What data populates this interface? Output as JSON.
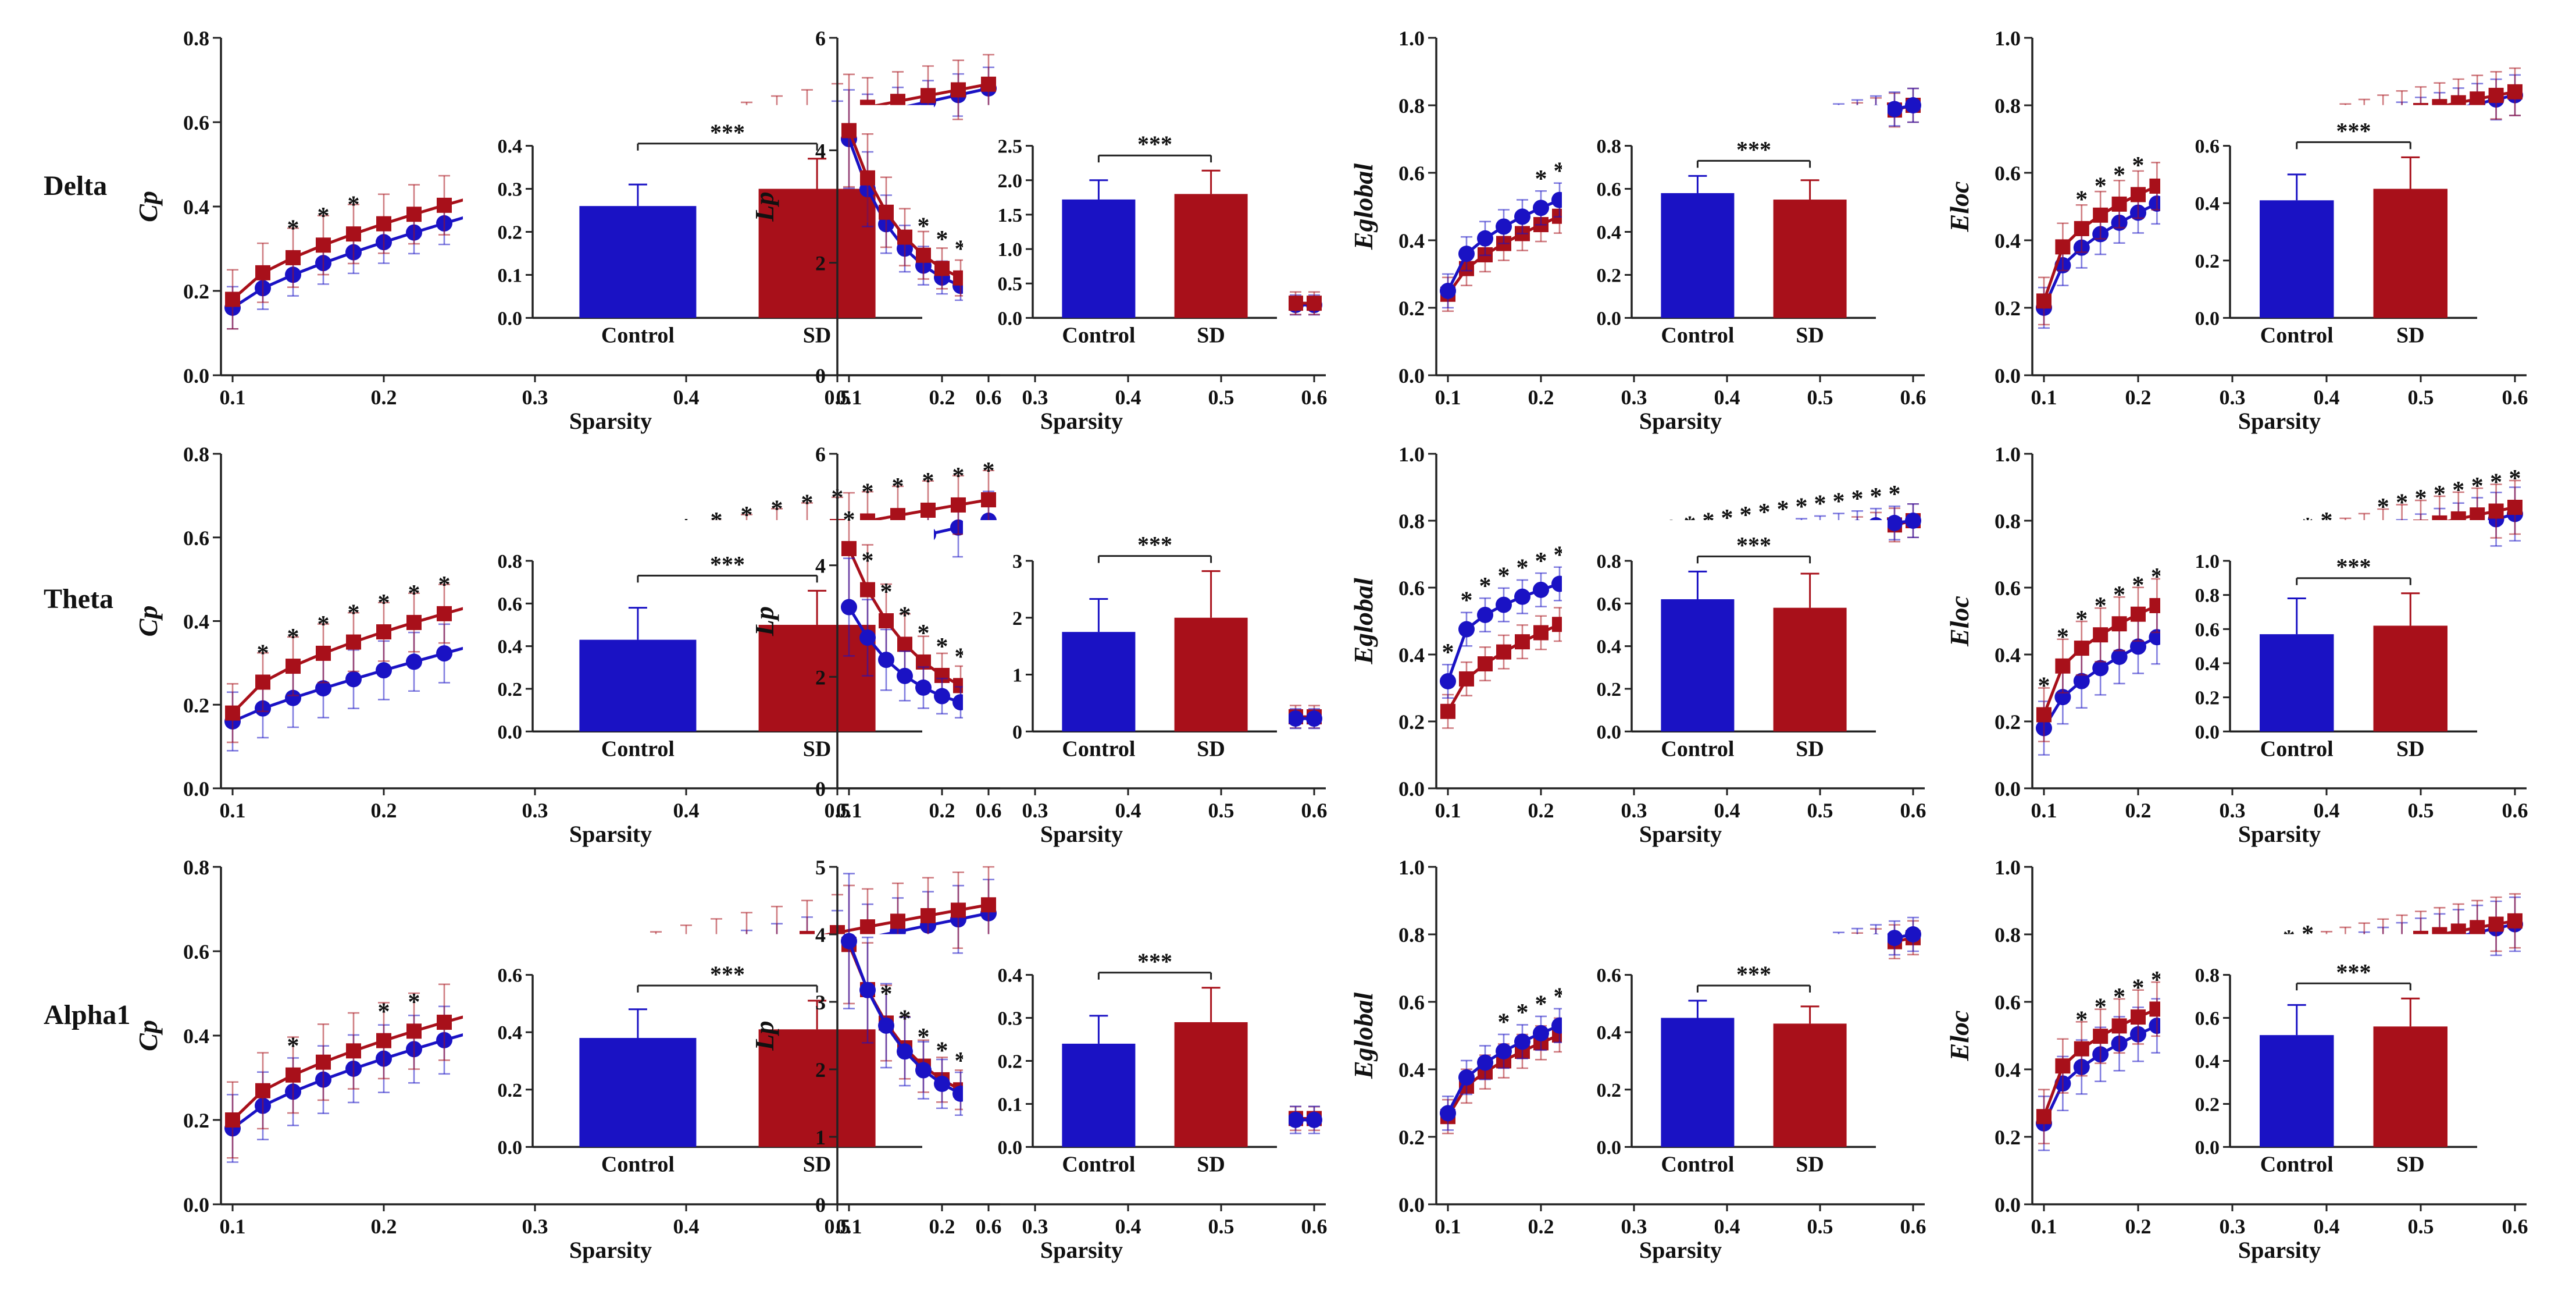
{
  "colors": {
    "control": "#1a12c4",
    "sd": "#a8101a",
    "axis": "#222222"
  },
  "rows": [
    {
      "label": "Delta"
    },
    {
      "label": "Theta"
    },
    {
      "label": "Alpha1"
    }
  ],
  "chart_data": [
    {
      "type": "line",
      "row": 0,
      "col": 0,
      "ylabel": "Cp",
      "xlabel": "Sparsity",
      "xlim": [
        0.1,
        0.6
      ],
      "ylim": [
        0,
        0.8
      ],
      "xticks": [
        "0.1",
        "0.2",
        "0.3",
        "0.4",
        "0.5",
        "0.6"
      ],
      "yticks": [
        "0.0",
        "0.2",
        "0.4",
        "0.6",
        "0.8"
      ],
      "series": [
        {
          "group": "control",
          "start": 0.16,
          "end": 0.68,
          "curve": 0.75,
          "err": 0.05
        },
        {
          "group": "sd",
          "start": 0.18,
          "end": 0.69,
          "curve": 0.65,
          "err": 0.07
        }
      ],
      "stars_x": [
        0.14,
        0.16,
        0.18
      ],
      "inset": {
        "categories": [
          "Control",
          "SD"
        ],
        "values": [
          0.26,
          0.3
        ],
        "errors": [
          0.05,
          0.07
        ],
        "ylim": [
          0,
          0.4
        ],
        "yticks": [
          "0.0",
          "0.1",
          "0.2",
          "0.3",
          "0.4"
        ],
        "sig": "***"
      }
    },
    {
      "type": "line",
      "row": 0,
      "col": 1,
      "ylabel": "Lp",
      "xlabel": "Sparsity",
      "xlim": [
        0.1,
        0.6
      ],
      "ylim": [
        0,
        6
      ],
      "xticks": [
        "0.1",
        "0.2",
        "0.3",
        "0.4",
        "0.5",
        "0.6"
      ],
      "yticks": [
        "0",
        "2",
        "4",
        "6"
      ],
      "decay": true,
      "series": [
        {
          "group": "control",
          "start": 4.2,
          "end": 1.25,
          "k": 9,
          "err": 0.7
        },
        {
          "group": "sd",
          "start": 4.35,
          "end": 1.28,
          "k": 8,
          "err": 0.8
        }
      ],
      "stars_x": [
        0.18,
        0.2,
        0.22,
        0.24,
        0.26,
        0.28,
        0.3,
        0.32,
        0.34,
        0.36,
        0.38,
        0.4
      ],
      "inset": {
        "categories": [
          "Control",
          "SD"
        ],
        "values": [
          1.72,
          1.8
        ],
        "errors": [
          0.28,
          0.34
        ],
        "ylim": [
          0,
          2.5
        ],
        "yticks": [
          "0.0",
          "0.5",
          "1.0",
          "1.5",
          "2.0",
          "2.5"
        ],
        "sig": "***"
      }
    },
    {
      "type": "line",
      "row": 0,
      "col": 2,
      "ylabel": "Eglobal",
      "xlabel": "Sparsity",
      "xlim": [
        0.1,
        0.6
      ],
      "ylim": [
        0,
        1.0
      ],
      "xticks": [
        "0.1",
        "0.2",
        "0.3",
        "0.4",
        "0.5",
        "0.6"
      ],
      "yticks": [
        "0.0",
        "0.2",
        "0.4",
        "0.6",
        "0.8",
        "1.0"
      ],
      "series": [
        {
          "group": "sd",
          "start": 0.24,
          "end": 0.8,
          "curve": 0.62,
          "err": 0.05
        },
        {
          "group": "control",
          "start": 0.25,
          "end": 0.8,
          "curve": 0.5,
          "err": 0.05
        }
      ],
      "stars_x": [
        0.2,
        0.22,
        0.24,
        0.26,
        0.28,
        0.3,
        0.32,
        0.34,
        0.36,
        0.38,
        0.4
      ],
      "inset": {
        "categories": [
          "Control",
          "SD"
        ],
        "values": [
          0.58,
          0.55
        ],
        "errors": [
          0.08,
          0.09
        ],
        "ylim": [
          0,
          0.8
        ],
        "yticks": [
          "0.0",
          "0.2",
          "0.4",
          "0.6",
          "0.8"
        ],
        "sig": "***"
      }
    },
    {
      "type": "line",
      "row": 0,
      "col": 3,
      "ylabel": "Eloc",
      "xlabel": "Sparsity",
      "xlim": [
        0.1,
        0.6
      ],
      "ylim": [
        0,
        1.0
      ],
      "xticks": [
        "0.1",
        "0.2",
        "0.3",
        "0.4",
        "0.5",
        "0.6"
      ],
      "yticks": [
        "0.0",
        "0.2",
        "0.4",
        "0.6",
        "0.8",
        "1.0"
      ],
      "series": [
        {
          "group": "control",
          "start": 0.2,
          "end": 0.83,
          "curve": 0.5,
          "err": 0.06
        },
        {
          "group": "sd",
          "start": 0.22,
          "end": 0.84,
          "curve": 0.42,
          "err": 0.07
        }
      ],
      "stars_x": [
        0.14,
        0.16,
        0.18,
        0.2,
        0.26
      ],
      "inset": {
        "categories": [
          "Control",
          "SD"
        ],
        "values": [
          0.41,
          0.45
        ],
        "errors": [
          0.09,
          0.11
        ],
        "ylim": [
          0,
          0.6
        ],
        "yticks": [
          "0.0",
          "0.2",
          "0.4",
          "0.6"
        ],
        "sig": "***"
      }
    },
    {
      "type": "line",
      "row": 1,
      "col": 0,
      "ylabel": "Cp",
      "xlabel": "Sparsity",
      "xlim": [
        0.1,
        0.6
      ],
      "ylim": [
        0,
        0.8
      ],
      "xticks": [
        "0.1",
        "0.2",
        "0.3",
        "0.4",
        "0.5",
        "0.6"
      ],
      "yticks": [
        "0.0",
        "0.2",
        "0.4",
        "0.6",
        "0.8"
      ],
      "series": [
        {
          "group": "control",
          "start": 0.16,
          "end": 0.64,
          "curve": 0.85,
          "err": 0.07
        },
        {
          "group": "sd",
          "start": 0.18,
          "end": 0.69,
          "curve": 0.6,
          "err": 0.07
        }
      ],
      "stars_x": [
        0.12,
        0.14,
        0.16,
        0.18,
        0.2,
        0.22,
        0.24,
        0.26,
        0.28,
        0.3,
        0.32,
        0.34,
        0.36,
        0.38,
        0.4,
        0.42,
        0.44,
        0.46,
        0.48,
        0.5,
        0.52,
        0.54,
        0.56,
        0.58,
        0.6
      ],
      "inset": {
        "categories": [
          "Control",
          "SD"
        ],
        "values": [
          0.43,
          0.5
        ],
        "errors": [
          0.15,
          0.16
        ],
        "ylim": [
          0,
          0.8
        ],
        "yticks": [
          "0.0",
          "0.2",
          "0.4",
          "0.6",
          "0.8"
        ],
        "sig": "***"
      }
    },
    {
      "type": "line",
      "row": 1,
      "col": 1,
      "ylabel": "Lp",
      "xlabel": "Sparsity",
      "xlim": [
        0.1,
        0.6
      ],
      "ylim": [
        0,
        6
      ],
      "xticks": [
        "0.1",
        "0.2",
        "0.3",
        "0.4",
        "0.5",
        "0.6"
      ],
      "yticks": [
        "0",
        "2",
        "4",
        "6"
      ],
      "decay": true,
      "series": [
        {
          "group": "sd",
          "start": 4.3,
          "end": 1.28,
          "k": 7,
          "err": 0.8
        },
        {
          "group": "control",
          "start": 3.25,
          "end": 1.25,
          "k": 8,
          "err": 0.7
        }
      ],
      "stars_x": [
        0.1,
        0.12,
        0.14,
        0.16,
        0.18,
        0.2,
        0.22,
        0.24,
        0.26,
        0.28,
        0.3,
        0.32,
        0.34,
        0.36,
        0.38,
        0.4,
        0.42,
        0.44,
        0.46,
        0.48,
        0.5,
        0.52,
        0.54,
        0.56
      ],
      "inset": {
        "categories": [
          "Control",
          "SD"
        ],
        "values": [
          1.75,
          2.0
        ],
        "errors": [
          0.58,
          0.82
        ],
        "ylim": [
          0,
          3
        ],
        "yticks": [
          "0",
          "1",
          "2",
          "3"
        ],
        "sig": "***"
      }
    },
    {
      "type": "line",
      "row": 1,
      "col": 2,
      "ylabel": "Eglobal",
      "xlabel": "Sparsity",
      "xlim": [
        0.1,
        0.6
      ],
      "ylim": [
        0,
        1.0
      ],
      "xticks": [
        "0.1",
        "0.2",
        "0.3",
        "0.4",
        "0.5",
        "0.6"
      ],
      "yticks": [
        "0.0",
        "0.2",
        "0.4",
        "0.6",
        "0.8",
        "1.0"
      ],
      "series": [
        {
          "group": "sd",
          "start": 0.23,
          "end": 0.8,
          "curve": 0.55,
          "err": 0.05
        },
        {
          "group": "control",
          "start": 0.32,
          "end": 0.8,
          "curve": 0.35,
          "err": 0.05
        }
      ],
      "stars_x": [
        0.1,
        0.12,
        0.14,
        0.16,
        0.18,
        0.2,
        0.22,
        0.24,
        0.26,
        0.28,
        0.3,
        0.32,
        0.34,
        0.36,
        0.38,
        0.4,
        0.42,
        0.44,
        0.46,
        0.48,
        0.5,
        0.52,
        0.54,
        0.56,
        0.58
      ],
      "inset": {
        "categories": [
          "Control",
          "SD"
        ],
        "values": [
          0.62,
          0.58
        ],
        "errors": [
          0.13,
          0.16
        ],
        "ylim": [
          0,
          0.8
        ],
        "yticks": [
          "0.0",
          "0.2",
          "0.4",
          "0.6",
          "0.8"
        ],
        "sig": "***"
      }
    },
    {
      "type": "line",
      "row": 1,
      "col": 3,
      "ylabel": "Eloc",
      "xlabel": "Sparsity",
      "xlim": [
        0.1,
        0.6
      ],
      "ylim": [
        0,
        1.0
      ],
      "xticks": [
        "0.1",
        "0.2",
        "0.3",
        "0.4",
        "0.5",
        "0.6"
      ],
      "yticks": [
        "0.0",
        "0.2",
        "0.4",
        "0.6",
        "0.8",
        "1.0"
      ],
      "series": [
        {
          "group": "control",
          "start": 0.18,
          "end": 0.82,
          "curve": 0.6,
          "err": 0.08
        },
        {
          "group": "sd",
          "start": 0.22,
          "end": 0.84,
          "curve": 0.45,
          "err": 0.08
        }
      ],
      "stars_x": [
        0.1,
        0.12,
        0.14,
        0.16,
        0.18,
        0.2,
        0.22,
        0.24,
        0.26,
        0.28,
        0.3,
        0.32,
        0.34,
        0.36,
        0.38,
        0.4,
        0.46,
        0.48,
        0.5,
        0.52,
        0.54,
        0.56,
        0.58,
        0.6
      ],
      "inset": {
        "categories": [
          "Control",
          "SD"
        ],
        "values": [
          0.57,
          0.62
        ],
        "errors": [
          0.21,
          0.19
        ],
        "ylim": [
          0,
          1.0
        ],
        "yticks": [
          "0.0",
          "0.2",
          "0.4",
          "0.6",
          "0.8",
          "1.0"
        ],
        "sig": "***"
      }
    },
    {
      "type": "line",
      "row": 2,
      "col": 0,
      "ylabel": "Cp",
      "xlabel": "Sparsity",
      "xlim": [
        0.1,
        0.6
      ],
      "ylim": [
        0,
        0.8
      ],
      "xticks": [
        "0.1",
        "0.2",
        "0.3",
        "0.4",
        "0.5",
        "0.6"
      ],
      "yticks": [
        "0.0",
        "0.2",
        "0.4",
        "0.6",
        "0.8"
      ],
      "series": [
        {
          "group": "control",
          "start": 0.18,
          "end": 0.69,
          "curve": 0.7,
          "err": 0.08
        },
        {
          "group": "sd",
          "start": 0.2,
          "end": 0.71,
          "curve": 0.62,
          "err": 0.09
        }
      ],
      "stars_x": [
        0.14,
        0.2,
        0.22,
        0.26,
        0.28,
        0.34,
        0.36
      ],
      "inset": {
        "categories": [
          "Control",
          "SD"
        ],
        "values": [
          0.38,
          0.41
        ],
        "errors": [
          0.1,
          0.1
        ],
        "ylim": [
          0,
          0.6
        ],
        "yticks": [
          "0.0",
          "0.2",
          "0.4",
          "0.6"
        ],
        "sig": "***"
      }
    },
    {
      "type": "line",
      "row": 2,
      "col": 1,
      "ylabel": "Lp",
      "xlabel": "Sparsity",
      "xlim": [
        0.1,
        0.6
      ],
      "ylim": [
        0,
        5
      ],
      "xticks": [
        "0.1",
        "0.2",
        "0.3",
        "0.4",
        "0.5",
        "0.6"
      ],
      "yticks": [
        "0",
        "1",
        "2",
        "3",
        "4",
        "5"
      ],
      "decay": true,
      "series": [
        {
          "group": "sd",
          "start": 3.85,
          "end": 1.27,
          "k": 7.5,
          "err": 0.7
        },
        {
          "group": "control",
          "start": 3.9,
          "end": 1.25,
          "k": 8,
          "err": 0.8
        }
      ],
      "stars_x": [
        0.14,
        0.16,
        0.18,
        0.2,
        0.22,
        0.24
      ],
      "inset": {
        "categories": [
          "Control",
          "SD"
        ],
        "values": [
          0.24,
          0.29
        ],
        "errors": [
          0.065,
          0.08
        ],
        "ylim": [
          0,
          0.4
        ],
        "yticks": [
          "0.0",
          "0.1",
          "0.2",
          "0.3",
          "0.4"
        ],
        "sig": "***"
      }
    },
    {
      "type": "line",
      "row": 2,
      "col": 2,
      "ylabel": "Eglobal",
      "xlabel": "Sparsity",
      "xlim": [
        0.1,
        0.6
      ],
      "ylim": [
        0,
        1.0
      ],
      "xticks": [
        "0.1",
        "0.2",
        "0.3",
        "0.4",
        "0.5",
        "0.6"
      ],
      "yticks": [
        "0.0",
        "0.2",
        "0.4",
        "0.6",
        "0.8",
        "1.0"
      ],
      "series": [
        {
          "group": "sd",
          "start": 0.26,
          "end": 0.79,
          "curve": 0.55,
          "err": 0.05
        },
        {
          "group": "control",
          "start": 0.27,
          "end": 0.8,
          "curve": 0.5,
          "err": 0.05
        }
      ],
      "stars_x": [
        0.16,
        0.18,
        0.2,
        0.22,
        0.24
      ],
      "inset": {
        "categories": [
          "Control",
          "SD"
        ],
        "values": [
          0.45,
          0.43
        ],
        "errors": [
          0.06,
          0.06
        ],
        "ylim": [
          0,
          0.6
        ],
        "yticks": [
          "0.0",
          "0.2",
          "0.4",
          "0.6"
        ],
        "sig": "***"
      }
    },
    {
      "type": "line",
      "row": 2,
      "col": 3,
      "ylabel": "Eloc",
      "xlabel": "Sparsity",
      "xlim": [
        0.1,
        0.6
      ],
      "ylim": [
        0,
        1.0
      ],
      "xticks": [
        "0.1",
        "0.2",
        "0.3",
        "0.4",
        "0.5",
        "0.6"
      ],
      "yticks": [
        "0.0",
        "0.2",
        "0.4",
        "0.6",
        "0.8",
        "1.0"
      ],
      "series": [
        {
          "group": "control",
          "start": 0.24,
          "end": 0.83,
          "curve": 0.5,
          "err": 0.08
        },
        {
          "group": "sd",
          "start": 0.26,
          "end": 0.84,
          "curve": 0.42,
          "err": 0.08
        }
      ],
      "stars_x": [
        0.14,
        0.16,
        0.18,
        0.2,
        0.22,
        0.24,
        0.28,
        0.3,
        0.32,
        0.34,
        0.36,
        0.38
      ],
      "inset": {
        "categories": [
          "Control",
          "SD"
        ],
        "values": [
          0.52,
          0.56
        ],
        "errors": [
          0.14,
          0.13
        ],
        "ylim": [
          0,
          0.8
        ],
        "yticks": [
          "0.0",
          "0.2",
          "0.4",
          "0.6",
          "0.8"
        ],
        "sig": "***"
      }
    }
  ]
}
